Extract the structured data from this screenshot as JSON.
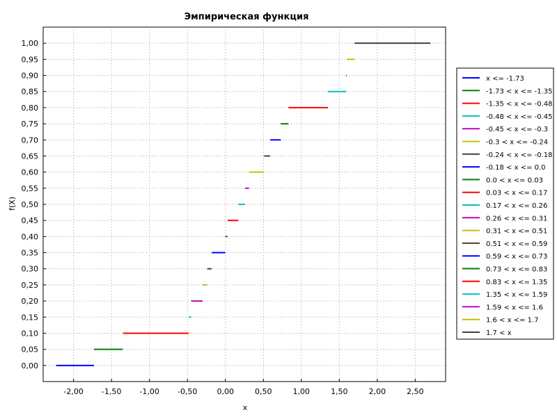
{
  "chart_data": {
    "type": "line",
    "title": "Эмпирическая функция",
    "xlabel": "x",
    "ylabel": "f(X)",
    "xlim": [
      -2.4,
      2.9
    ],
    "ylim": [
      -0.05,
      1.05
    ],
    "grid": true,
    "legend_position": "right",
    "x_ticks": [
      {
        "value": -2.0,
        "label": "-2,00"
      },
      {
        "value": -1.5,
        "label": "-1,50"
      },
      {
        "value": -1.0,
        "label": "-1,00"
      },
      {
        "value": -0.5,
        "label": "-0,50"
      },
      {
        "value": 0.0,
        "label": "0,00"
      },
      {
        "value": 0.5,
        "label": "0,50"
      },
      {
        "value": 1.0,
        "label": "1,00"
      },
      {
        "value": 1.5,
        "label": "1,50"
      },
      {
        "value": 2.0,
        "label": "2,00"
      },
      {
        "value": 2.5,
        "label": "2,50"
      }
    ],
    "y_ticks": [
      {
        "value": 0.0,
        "label": "0,00"
      },
      {
        "value": 0.05,
        "label": "0,05"
      },
      {
        "value": 0.1,
        "label": "0,10"
      },
      {
        "value": 0.15,
        "label": "0,15"
      },
      {
        "value": 0.2,
        "label": "0,20"
      },
      {
        "value": 0.25,
        "label": "0,25"
      },
      {
        "value": 0.3,
        "label": "0,30"
      },
      {
        "value": 0.35,
        "label": "0,35"
      },
      {
        "value": 0.4,
        "label": "0,40"
      },
      {
        "value": 0.45,
        "label": "0,45"
      },
      {
        "value": 0.5,
        "label": "0,50"
      },
      {
        "value": 0.55,
        "label": "0,55"
      },
      {
        "value": 0.6,
        "label": "0,60"
      },
      {
        "value": 0.65,
        "label": "0,65"
      },
      {
        "value": 0.7,
        "label": "0,70"
      },
      {
        "value": 0.75,
        "label": "0,75"
      },
      {
        "value": 0.8,
        "label": "0,80"
      },
      {
        "value": 0.85,
        "label": "0,85"
      },
      {
        "value": 0.9,
        "label": "0,90"
      },
      {
        "value": 0.95,
        "label": "0,95"
      },
      {
        "value": 1.0,
        "label": "1,00"
      }
    ],
    "series": [
      {
        "name": "x <= -1.73",
        "x": [
          -2.23,
          -1.73
        ],
        "y": [
          0.0,
          0.0
        ],
        "color": "#0000ff"
      },
      {
        "name": "-1.73 < x <= -1.35",
        "x": [
          -1.73,
          -1.35
        ],
        "y": [
          0.05,
          0.05
        ],
        "color": "#008000"
      },
      {
        "name": "-1.35 < x <= -0.48",
        "x": [
          -1.35,
          -0.48
        ],
        "y": [
          0.1,
          0.1
        ],
        "color": "#ff0000"
      },
      {
        "name": "-0.48 < x <= -0.45",
        "x": [
          -0.48,
          -0.45
        ],
        "y": [
          0.15,
          0.15
        ],
        "color": "#00c0c0"
      },
      {
        "name": "-0.45 < x <= -0.3",
        "x": [
          -0.45,
          -0.3
        ],
        "y": [
          0.2,
          0.2
        ],
        "color": "#c000c0"
      },
      {
        "name": "-0.3 < x <= -0.24",
        "x": [
          -0.3,
          -0.24
        ],
        "y": [
          0.25,
          0.25
        ],
        "color": "#c0c000"
      },
      {
        "name": "-0.24 < x <= -0.18",
        "x": [
          -0.24,
          -0.18
        ],
        "y": [
          0.3,
          0.3
        ],
        "color": "#404040"
      },
      {
        "name": "-0.18 < x <= 0.0",
        "x": [
          -0.18,
          0.0
        ],
        "y": [
          0.35,
          0.35
        ],
        "color": "#0000ff"
      },
      {
        "name": "0.0 < x <= 0.03",
        "x": [
          0.0,
          0.03
        ],
        "y": [
          0.4,
          0.4
        ],
        "color": "#008000"
      },
      {
        "name": "0.03 < x <= 0.17",
        "x": [
          0.03,
          0.17
        ],
        "y": [
          0.45,
          0.45
        ],
        "color": "#ff0000"
      },
      {
        "name": "0.17 < x <= 0.26",
        "x": [
          0.17,
          0.26
        ],
        "y": [
          0.5,
          0.5
        ],
        "color": "#00c0c0"
      },
      {
        "name": "0.26 < x <= 0.31",
        "x": [
          0.26,
          0.31
        ],
        "y": [
          0.55,
          0.55
        ],
        "color": "#c000c0"
      },
      {
        "name": "0.31 < x <= 0.51",
        "x": [
          0.31,
          0.51
        ],
        "y": [
          0.6,
          0.6
        ],
        "color": "#c0c000"
      },
      {
        "name": "0.51 < x <= 0.59",
        "x": [
          0.51,
          0.59
        ],
        "y": [
          0.65,
          0.65
        ],
        "color": "#404040"
      },
      {
        "name": "0.59 < x <= 0.73",
        "x": [
          0.59,
          0.73
        ],
        "y": [
          0.7,
          0.7
        ],
        "color": "#0000ff"
      },
      {
        "name": "0.73 < x <= 0.83",
        "x": [
          0.73,
          0.83
        ],
        "y": [
          0.75,
          0.75
        ],
        "color": "#008000"
      },
      {
        "name": "0.83 < x <= 1.35",
        "x": [
          0.83,
          1.35
        ],
        "y": [
          0.8,
          0.8
        ],
        "color": "#ff0000"
      },
      {
        "name": "1.35 < x <= 1.59",
        "x": [
          1.35,
          1.59
        ],
        "y": [
          0.85,
          0.85
        ],
        "color": "#00c0c0"
      },
      {
        "name": "1.59 < x <= 1.6",
        "x": [
          1.59,
          1.6
        ],
        "y": [
          0.9,
          0.9
        ],
        "color": "#c000c0"
      },
      {
        "name": "1.6 < x <= 1.7",
        "x": [
          1.6,
          1.7
        ],
        "y": [
          0.95,
          0.95
        ],
        "color": "#c0c000"
      },
      {
        "name": "1.7 < x",
        "x": [
          1.7,
          2.7
        ],
        "y": [
          1.0,
          1.0
        ],
        "color": "#404040"
      }
    ]
  }
}
